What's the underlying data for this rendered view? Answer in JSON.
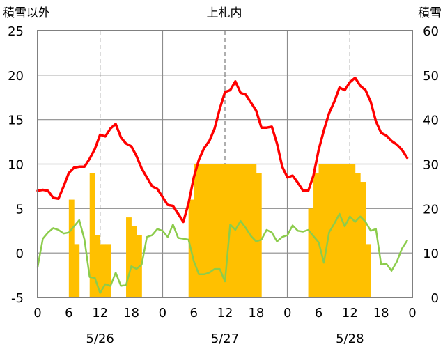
{
  "chart_data": {
    "type": "line+bar",
    "title": "上札内",
    "left_axis_label": "積雪以外",
    "right_axis_label": "積雪",
    "left_ylim": [
      -5,
      25
    ],
    "left_yticks": [
      -5,
      0,
      5,
      10,
      15,
      20,
      25
    ],
    "right_ylim": [
      0,
      60
    ],
    "right_yticks": [
      0,
      10,
      20,
      30,
      40,
      50,
      60
    ],
    "x_range_hours": [
      0,
      72
    ],
    "x_tick_hours": [
      0,
      6,
      12,
      18,
      24,
      30,
      36,
      42,
      48,
      54,
      60,
      66,
      72
    ],
    "x_tick_labels": [
      "0",
      "6",
      "12",
      "18",
      "0",
      "6",
      "12",
      "18",
      "0",
      "6",
      "12",
      "18",
      "0"
    ],
    "day_separators": [
      24,
      48
    ],
    "noon_gridlines": [
      12,
      36,
      60
    ],
    "dates": [
      {
        "label": "5/26",
        "hour": 12
      },
      {
        "label": "5/27",
        "hour": 36
      },
      {
        "label": "5/28",
        "hour": 60
      }
    ],
    "grid": true,
    "series": [
      {
        "name": "red-line",
        "color": "#ff0000",
        "axis": "left",
        "x": [
          0,
          1,
          2,
          3,
          4,
          5,
          6,
          7,
          8,
          9,
          10,
          11,
          12,
          13,
          14,
          15,
          16,
          17,
          18,
          19,
          20,
          21,
          22,
          23,
          24,
          25,
          26,
          27,
          28,
          29,
          30,
          31,
          32,
          33,
          34,
          35,
          36,
          37,
          38,
          39,
          40,
          41,
          42,
          43,
          44,
          45,
          46,
          47,
          48,
          49,
          50,
          51,
          52,
          53,
          54,
          55,
          56,
          57,
          58,
          59,
          60,
          61,
          62,
          63,
          64,
          65,
          66,
          67,
          68,
          69,
          70,
          71
        ],
        "values": [
          7.0,
          7.1,
          7.0,
          6.2,
          6.1,
          7.5,
          9.0,
          9.6,
          9.7,
          9.7,
          10.6,
          11.7,
          13.3,
          13.1,
          14.0,
          14.5,
          13.0,
          12.3,
          12.0,
          10.9,
          9.5,
          8.5,
          7.5,
          7.2,
          6.3,
          5.4,
          5.3,
          4.4,
          3.5,
          5.6,
          8.5,
          10.5,
          11.8,
          12.6,
          14.0,
          16.2,
          18.1,
          18.3,
          19.3,
          18.0,
          17.8,
          16.9,
          16.0,
          14.1,
          14.1,
          14.2,
          12.3,
          9.7,
          8.5,
          8.7,
          7.9,
          7.0,
          7.0,
          8.7,
          11.6,
          13.8,
          15.7,
          17.0,
          18.6,
          18.3,
          19.2,
          19.7,
          18.8,
          18.3,
          17.0,
          14.8,
          13.5,
          13.2,
          12.6,
          12.2,
          11.6,
          10.7
        ]
      },
      {
        "name": "green-line",
        "color": "#8ccc4c",
        "axis": "left",
        "x": [
          0,
          1,
          2,
          3,
          4,
          5,
          6,
          7,
          8,
          9,
          10,
          11,
          12,
          13,
          14,
          15,
          16,
          17,
          18,
          19,
          20,
          21,
          22,
          23,
          24,
          25,
          26,
          27,
          28,
          29,
          30,
          31,
          32,
          33,
          34,
          35,
          36,
          37,
          38,
          39,
          40,
          41,
          42,
          43,
          44,
          45,
          46,
          47,
          48,
          49,
          50,
          51,
          52,
          53,
          54,
          55,
          56,
          57,
          58,
          59,
          60,
          61,
          62,
          63,
          64,
          65,
          66,
          67,
          68,
          69,
          70,
          71
        ],
        "values": [
          -1.6,
          1.6,
          2.3,
          2.8,
          2.6,
          2.2,
          2.3,
          3.0,
          3.7,
          1.5,
          -2.7,
          -2.8,
          -4.5,
          -3.5,
          -3.7,
          -2.2,
          -3.7,
          -3.6,
          -1.5,
          -1.8,
          -1.3,
          1.8,
          2.0,
          2.7,
          2.5,
          1.8,
          3.2,
          1.7,
          1.6,
          1.5,
          -0.9,
          -2.4,
          -2.4,
          -2.2,
          -1.8,
          -1.8,
          -3.2,
          3.2,
          2.6,
          3.6,
          2.8,
          1.9,
          1.3,
          1.5,
          2.6,
          2.3,
          1.3,
          1.8,
          2.0,
          3.1,
          2.5,
          2.4,
          2.6,
          1.9,
          1.2,
          -1.1,
          2.3,
          3.3,
          4.4,
          3.0,
          4.1,
          3.5,
          4.1,
          3.5,
          2.5,
          2.7,
          -1.3,
          -1.2,
          -2.0,
          -1.0,
          0.5,
          1.4
        ]
      }
    ],
    "bars": {
      "name": "snow",
      "color": "#ffc000",
      "axis": "right",
      "start_hours": [
        6,
        7,
        10,
        11,
        12,
        13,
        17,
        18,
        19,
        24,
        25,
        26,
        27,
        28,
        29,
        30,
        31,
        32,
        33,
        34,
        35,
        36,
        37,
        38,
        39,
        40,
        41,
        42,
        43,
        44,
        45,
        46,
        47,
        48,
        49,
        50,
        51,
        52,
        53,
        54,
        55,
        56,
        57,
        58,
        59,
        60,
        61,
        62,
        63,
        64,
        65,
        66,
        67,
        68,
        69,
        70,
        71
      ],
      "values": [
        22,
        12,
        28,
        14,
        12,
        12,
        18,
        16,
        14,
        0,
        0,
        0,
        0,
        0,
        22,
        30,
        30,
        30,
        30,
        30,
        30,
        30,
        30,
        30,
        30,
        30,
        30,
        28,
        0,
        0,
        0,
        0,
        0,
        0,
        0,
        0,
        0,
        20,
        28,
        30,
        30,
        30,
        30,
        30,
        30,
        30,
        28,
        26,
        12,
        0,
        0,
        0,
        0,
        0,
        0,
        0,
        0
      ]
    }
  }
}
